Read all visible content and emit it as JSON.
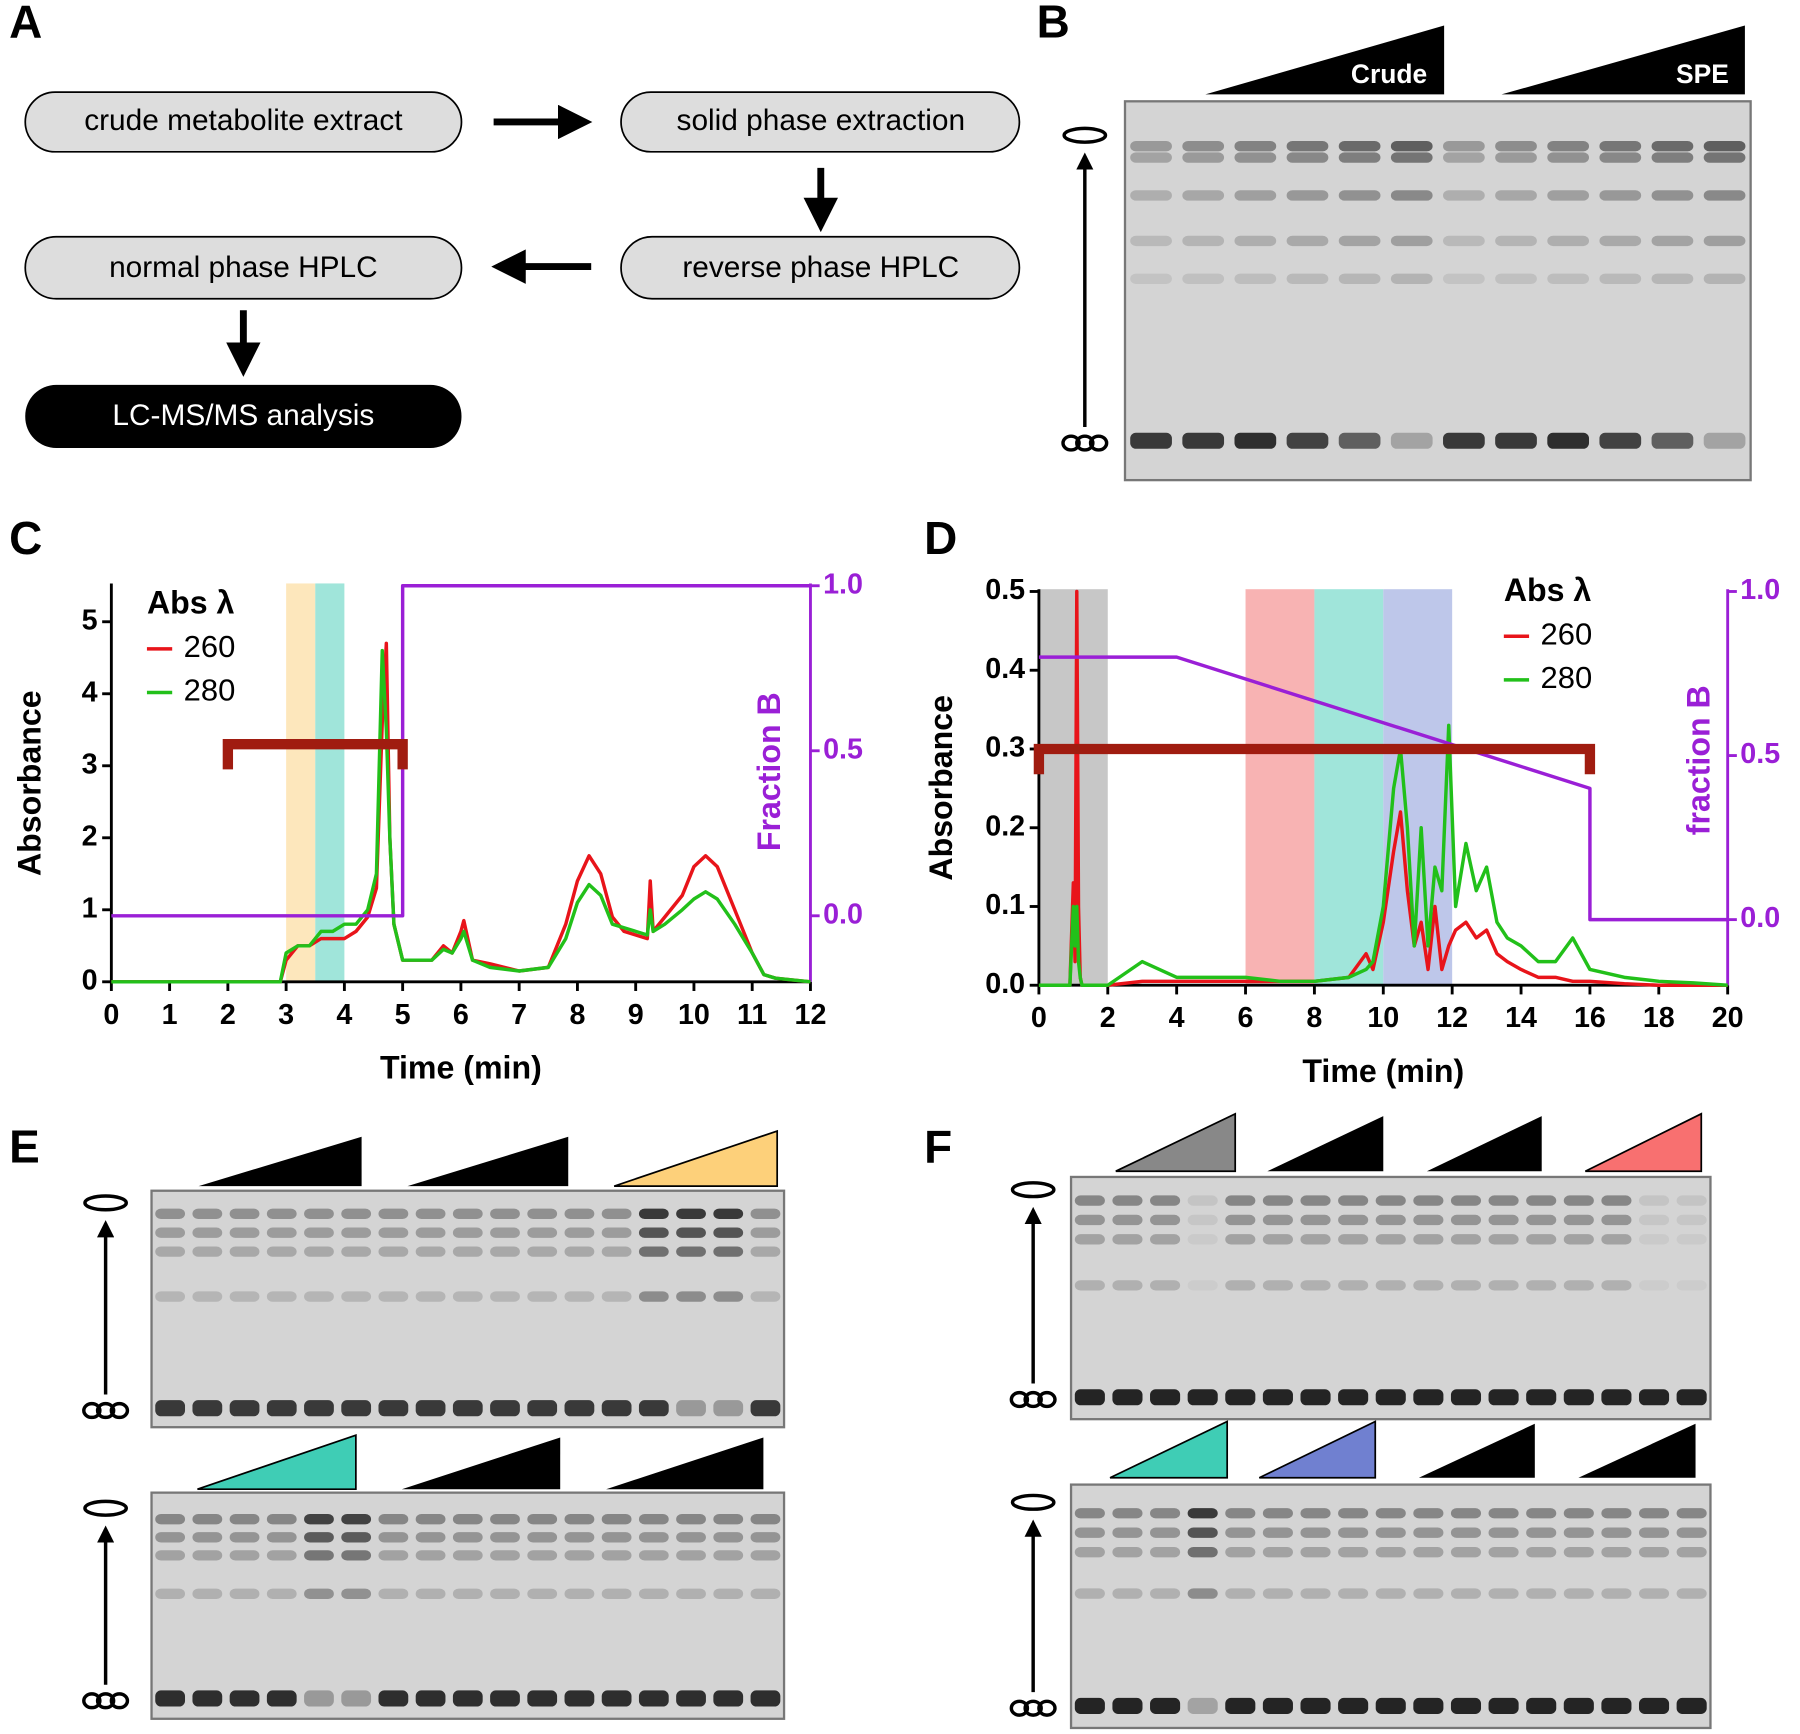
{
  "panel_labels": [
    "A",
    "B",
    "C",
    "D",
    "E",
    "F"
  ],
  "flowchart": {
    "nodes": [
      "crude metabolite extract",
      "solid phase extraction",
      "reverse phase HPLC",
      "normal phase HPLC",
      "LC-MS/MS analysis"
    ]
  },
  "gel_b": {
    "labels": [
      "Crude",
      "SPE"
    ]
  },
  "chart_data": [
    {
      "type": "line",
      "x_label": "Time (min)",
      "y_label": "Absorbance",
      "legend_title": "Abs λ",
      "xlim": [
        0,
        12
      ],
      "xticks": [
        0,
        1,
        2,
        3,
        4,
        5,
        6,
        7,
        8,
        9,
        10,
        11,
        12
      ],
      "ylim": [
        0,
        5.5
      ],
      "yticks": [
        0,
        1,
        2,
        3,
        4,
        5
      ],
      "y2lim": [
        -0.2,
        1.0
      ],
      "y2ticks": [
        {
          "value": 1,
          "label": "1.0"
        },
        {
          "value": 0.5,
          "label": "0.5"
        },
        {
          "value": 0,
          "label": "0.0"
        }
      ],
      "shaded_regions": [
        {
          "x": [
            3,
            3.5
          ],
          "color": "#fde3b0"
        },
        {
          "x": [
            3.5,
            4
          ],
          "color": "#8fe0d4"
        }
      ],
      "bracket": {
        "x": [
          2,
          5
        ],
        "y": 3.3,
        "color": "#a01c10"
      },
      "x": [
        0,
        2.9,
        3.0,
        3.2,
        3.4,
        3.6,
        3.8,
        4.0,
        4.2,
        4.4,
        4.55,
        4.65,
        4.72,
        4.78,
        4.85,
        5.0,
        5.5,
        5.7,
        5.85,
        6.0,
        6.05,
        6.2,
        6.5,
        7.0,
        7.5,
        7.8,
        8.0,
        8.2,
        8.4,
        8.6,
        8.8,
        9.0,
        9.2,
        9.25,
        9.3,
        9.5,
        9.8,
        10.0,
        10.2,
        10.4,
        10.7,
        11.0,
        11.2,
        11.4,
        12
      ],
      "series": [
        {
          "name": "260",
          "color": "#e8141a",
          "values": [
            0,
            0,
            0.3,
            0.5,
            0.5,
            0.6,
            0.6,
            0.6,
            0.7,
            0.9,
            1.3,
            3.6,
            4.7,
            2.0,
            0.8,
            0.3,
            0.3,
            0.5,
            0.4,
            0.7,
            0.85,
            0.3,
            0.25,
            0.15,
            0.2,
            0.8,
            1.4,
            1.75,
            1.5,
            0.9,
            0.7,
            0.65,
            0.6,
            1.4,
            0.7,
            0.9,
            1.2,
            1.6,
            1.75,
            1.6,
            1.0,
            0.4,
            0.1,
            0.05,
            0
          ]
        },
        {
          "name": "280",
          "color": "#22c01a",
          "values": [
            0,
            0,
            0.4,
            0.5,
            0.5,
            0.7,
            0.7,
            0.8,
            0.8,
            1.0,
            1.5,
            4.6,
            3.5,
            2.0,
            0.8,
            0.3,
            0.3,
            0.45,
            0.4,
            0.6,
            0.7,
            0.3,
            0.2,
            0.15,
            0.2,
            0.6,
            1.1,
            1.35,
            1.2,
            0.8,
            0.75,
            0.7,
            0.65,
            1.0,
            0.7,
            0.8,
            1.0,
            1.15,
            1.25,
            1.15,
            0.8,
            0.4,
            0.1,
            0.05,
            0
          ]
        },
        {
          "name": "Fraction B",
          "color": "#9a1fd6",
          "axis": "y2",
          "x": [
            0,
            5,
            5,
            12
          ],
          "values": [
            0,
            0,
            1,
            1
          ]
        }
      ]
    },
    {
      "type": "line",
      "x_label": "Time (min)",
      "y_label": "Absorbance",
      "legend_title": "Abs λ",
      "xlim": [
        0,
        20
      ],
      "xticks": [
        0,
        2,
        4,
        6,
        8,
        10,
        12,
        14,
        16,
        18,
        20
      ],
      "ylim": [
        0,
        0.5
      ],
      "yticks": [
        {
          "value": 0,
          "label": "0.0"
        },
        0.1,
        0.2,
        0.3,
        0.4,
        0.5
      ],
      "y2lim": [
        -0.2,
        1.0
      ],
      "y2ticks": [
        {
          "value": 1,
          "label": "1.0"
        },
        {
          "value": 0.5,
          "label": "0.5"
        },
        {
          "value": 0,
          "label": "0.0"
        }
      ],
      "shaded_regions": [
        {
          "x": [
            0,
            2
          ],
          "color": "#bdbdbd"
        },
        {
          "x": [
            6,
            8
          ],
          "color": "#f7a6a6"
        },
        {
          "x": [
            8,
            10
          ],
          "color": "#8fe0d4"
        },
        {
          "x": [
            10,
            12
          ],
          "color": "#b3bde6"
        }
      ],
      "bracket": {
        "x": [
          0,
          16
        ],
        "y": 0.3,
        "color": "#a01c10"
      },
      "x": [
        0,
        0.9,
        1.0,
        1.05,
        1.1,
        1.15,
        1.2,
        1.25,
        1.35,
        1.5,
        2,
        3,
        4,
        5,
        6,
        7,
        8,
        9,
        9.5,
        9.7,
        10,
        10.3,
        10.5,
        10.7,
        10.9,
        11.1,
        11.3,
        11.5,
        11.7,
        11.9,
        12.1,
        12.4,
        12.7,
        13,
        13.3,
        13.6,
        14,
        14.5,
        15,
        15.5,
        16,
        17,
        18,
        19,
        20
      ],
      "series": [
        {
          "name": "260",
          "color": "#e8141a",
          "values": [
            0,
            0,
            0.13,
            0.03,
            0.5,
            0.1,
            0.01,
            0,
            0,
            0,
            0,
            0.005,
            0.005,
            0.005,
            0.005,
            0.005,
            0.005,
            0.01,
            0.04,
            0.02,
            0.08,
            0.17,
            0.22,
            0.12,
            0.05,
            0.08,
            0.02,
            0.1,
            0.02,
            0.05,
            0.07,
            0.08,
            0.06,
            0.07,
            0.04,
            0.03,
            0.02,
            0.01,
            0.01,
            0.005,
            0.005,
            0.002,
            0,
            0,
            0
          ]
        },
        {
          "name": "280",
          "color": "#22c01a",
          "values": [
            0,
            0,
            0.1,
            0.05,
            0.1,
            0.03,
            0.01,
            0,
            0,
            0,
            0,
            0.03,
            0.01,
            0.01,
            0.01,
            0.005,
            0.005,
            0.01,
            0.02,
            0.03,
            0.1,
            0.25,
            0.3,
            0.2,
            0.05,
            0.2,
            0.05,
            0.15,
            0.12,
            0.33,
            0.1,
            0.18,
            0.12,
            0.15,
            0.08,
            0.06,
            0.05,
            0.03,
            0.03,
            0.06,
            0.02,
            0.01,
            0.005,
            0.003,
            0
          ]
        },
        {
          "name": "fraction B",
          "color": "#9a1fd6",
          "axis": "y2",
          "x": [
            0,
            4,
            16,
            16,
            20
          ],
          "values": [
            0.8,
            0.8,
            0.4,
            0,
            0
          ]
        }
      ]
    }
  ]
}
